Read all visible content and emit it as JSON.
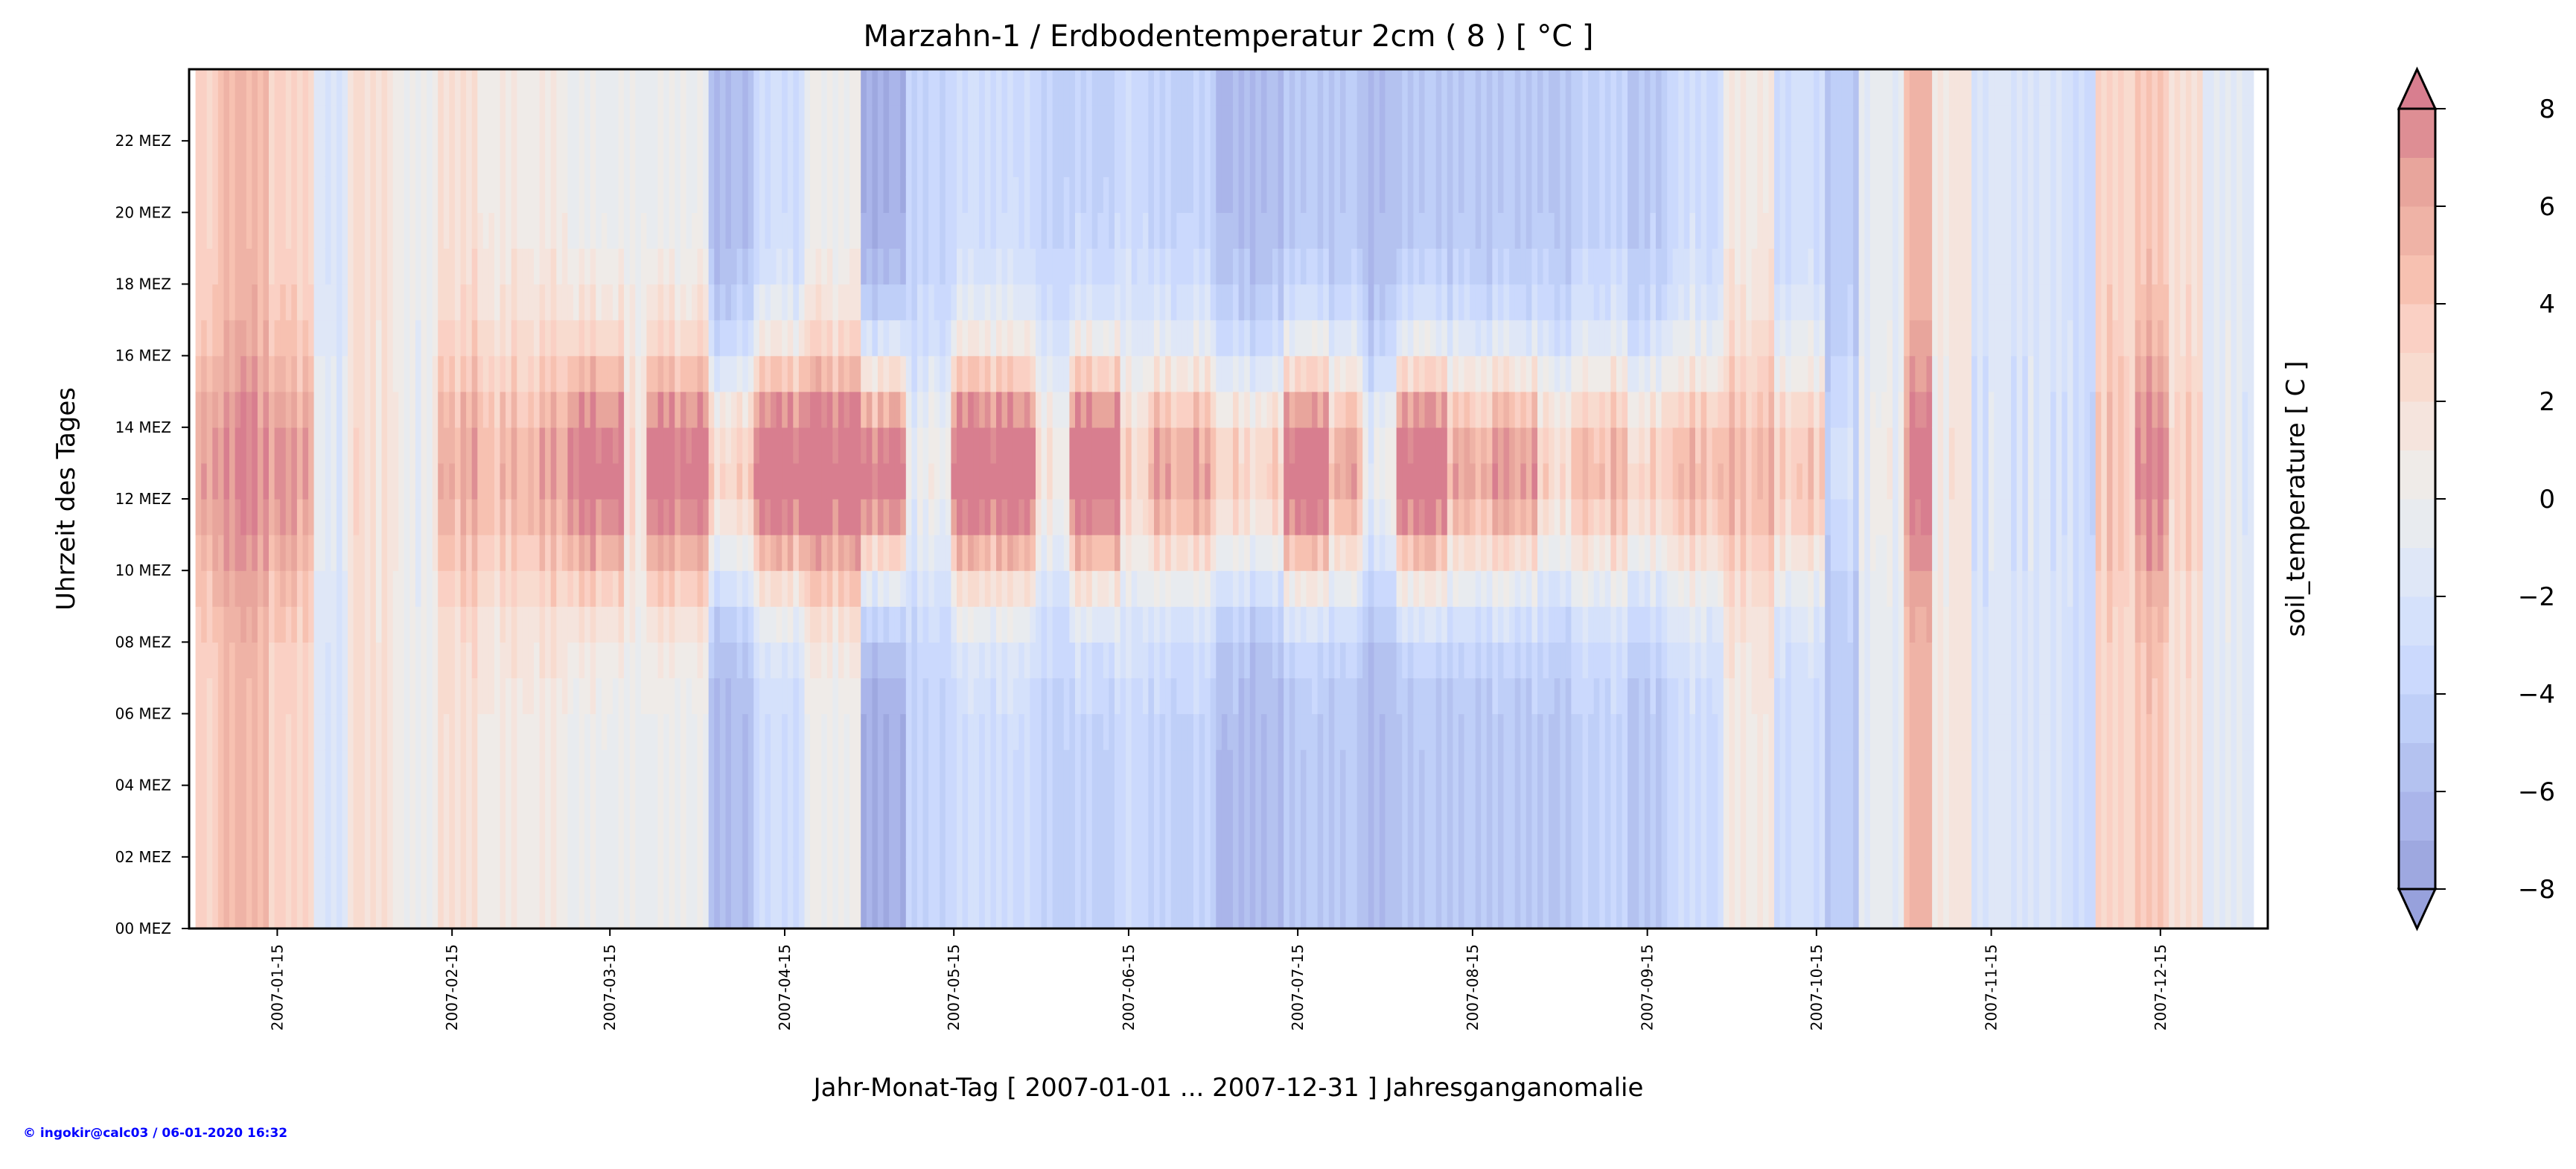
{
  "chart_data": {
    "type": "heatmap",
    "title": "Marzahn-1 / Erdbodentemperatur 2cm ( 8 ) [ °C ]",
    "xlabel": "Jahr-Monat-Tag [ 2007-01-01 ... 2007-12-31 ] Jahresganganomalie",
    "ylabel": "Uhrzeit des Tages",
    "colorbar_label": "soil_temperature [ C ]",
    "x_range_days": [
      0,
      365
    ],
    "y_range_hours": [
      0,
      24
    ],
    "x_ticks": [
      {
        "day": 14,
        "label": "2007-01-15"
      },
      {
        "day": 45,
        "label": "2007-02-15"
      },
      {
        "day": 73,
        "label": "2007-03-15"
      },
      {
        "day": 104,
        "label": "2007-04-15"
      },
      {
        "day": 134,
        "label": "2007-05-15"
      },
      {
        "day": 165,
        "label": "2007-06-15"
      },
      {
        "day": 195,
        "label": "2007-07-15"
      },
      {
        "day": 226,
        "label": "2007-08-15"
      },
      {
        "day": 257,
        "label": "2007-09-15"
      },
      {
        "day": 287,
        "label": "2007-10-15"
      },
      {
        "day": 318,
        "label": "2007-11-15"
      },
      {
        "day": 348,
        "label": "2007-12-15"
      }
    ],
    "y_ticks": [
      {
        "hour": 0,
        "label": "00 MEZ"
      },
      {
        "hour": 2,
        "label": "02 MEZ"
      },
      {
        "hour": 4,
        "label": "04 MEZ"
      },
      {
        "hour": 6,
        "label": "06 MEZ"
      },
      {
        "hour": 8,
        "label": "08 MEZ"
      },
      {
        "hour": 10,
        "label": "10 MEZ"
      },
      {
        "hour": 12,
        "label": "12 MEZ"
      },
      {
        "hour": 14,
        "label": "14 MEZ"
      },
      {
        "hour": 16,
        "label": "16 MEZ"
      },
      {
        "hour": 18,
        "label": "18 MEZ"
      },
      {
        "hour": 20,
        "label": "20 MEZ"
      },
      {
        "hour": 22,
        "label": "22 MEZ"
      }
    ],
    "colorbar": {
      "min": -8,
      "max": 8,
      "step": 1,
      "extend": "both",
      "ticks": [
        {
          "value": 8,
          "label": "8"
        },
        {
          "value": 6,
          "label": "6"
        },
        {
          "value": 4,
          "label": "4"
        },
        {
          "value": 2,
          "label": "2"
        },
        {
          "value": 0,
          "label": "0"
        },
        {
          "value": -2,
          "label": "−2"
        },
        {
          "value": -4,
          "label": "−4"
        },
        {
          "value": -6,
          "label": "−6"
        },
        {
          "value": -8,
          "label": "−8"
        }
      ],
      "colors": [
        "#9ea8e0",
        "#aab5ea",
        "#b4c2f0",
        "#bfcff8",
        "#cbd9fd",
        "#d5e1fb",
        "#dfe7f7",
        "#e8ebef",
        "#efebe8",
        "#f5e4dd",
        "#f8dbcf",
        "#fad0c4",
        "#f7c1b1",
        "#efb3a6",
        "#e8a59c",
        "#de8e94"
      ],
      "under_color": "#97a1dc",
      "over_color": "#d87e8f"
    },
    "segments": [
      [
        0,
        4,
        3,
        6
      ],
      [
        4,
        13,
        5,
        8
      ],
      [
        13,
        21,
        3,
        7
      ],
      [
        21,
        27,
        -2,
        -1
      ],
      [
        27,
        35,
        2,
        2
      ],
      [
        35,
        43,
        0,
        0
      ],
      [
        43,
        50,
        2,
        6
      ],
      [
        50,
        59,
        1,
        5
      ],
      [
        59,
        66,
        1,
        6
      ],
      [
        66,
        76,
        0,
        9
      ],
      [
        76,
        80,
        0,
        2
      ],
      [
        80,
        91,
        0,
        9
      ],
      [
        91,
        99,
        -6,
        3
      ],
      [
        99,
        108,
        -3,
        10
      ],
      [
        108,
        118,
        0,
        10
      ],
      [
        118,
        126,
        -7,
        9
      ],
      [
        126,
        134,
        -4,
        0
      ],
      [
        134,
        149,
        -3,
        10
      ],
      [
        149,
        155,
        -4,
        1
      ],
      [
        155,
        164,
        -4,
        10
      ],
      [
        164,
        169,
        -3,
        3
      ],
      [
        169,
        181,
        -4,
        6
      ],
      [
        181,
        193,
        -6,
        3
      ],
      [
        193,
        201,
        -5,
        10
      ],
      [
        201,
        207,
        -5,
        6
      ],
      [
        207,
        213,
        -6,
        0
      ],
      [
        213,
        222,
        -5,
        10
      ],
      [
        222,
        229,
        -5,
        6
      ],
      [
        229,
        238,
        -5,
        7
      ],
      [
        238,
        245,
        -5,
        3
      ],
      [
        245,
        254,
        -4,
        5
      ],
      [
        254,
        261,
        -5,
        3
      ],
      [
        261,
        271,
        -3,
        5
      ],
      [
        271,
        280,
        1,
        5
      ],
      [
        280,
        289,
        -3,
        4
      ],
      [
        289,
        295,
        -5,
        -3
      ],
      [
        295,
        303,
        -1,
        0
      ],
      [
        303,
        308,
        5,
        8
      ],
      [
        308,
        315,
        1,
        1
      ],
      [
        315,
        332,
        -2,
        -2
      ],
      [
        332,
        337,
        -3,
        -3
      ],
      [
        337,
        344,
        3,
        4
      ],
      [
        344,
        350,
        4,
        8
      ],
      [
        350,
        356,
        2,
        3
      ],
      [
        356,
        364,
        -1,
        -1
      ]
    ]
  },
  "footer": "© ingokir@calc03 / 06-01-2020 16:32"
}
